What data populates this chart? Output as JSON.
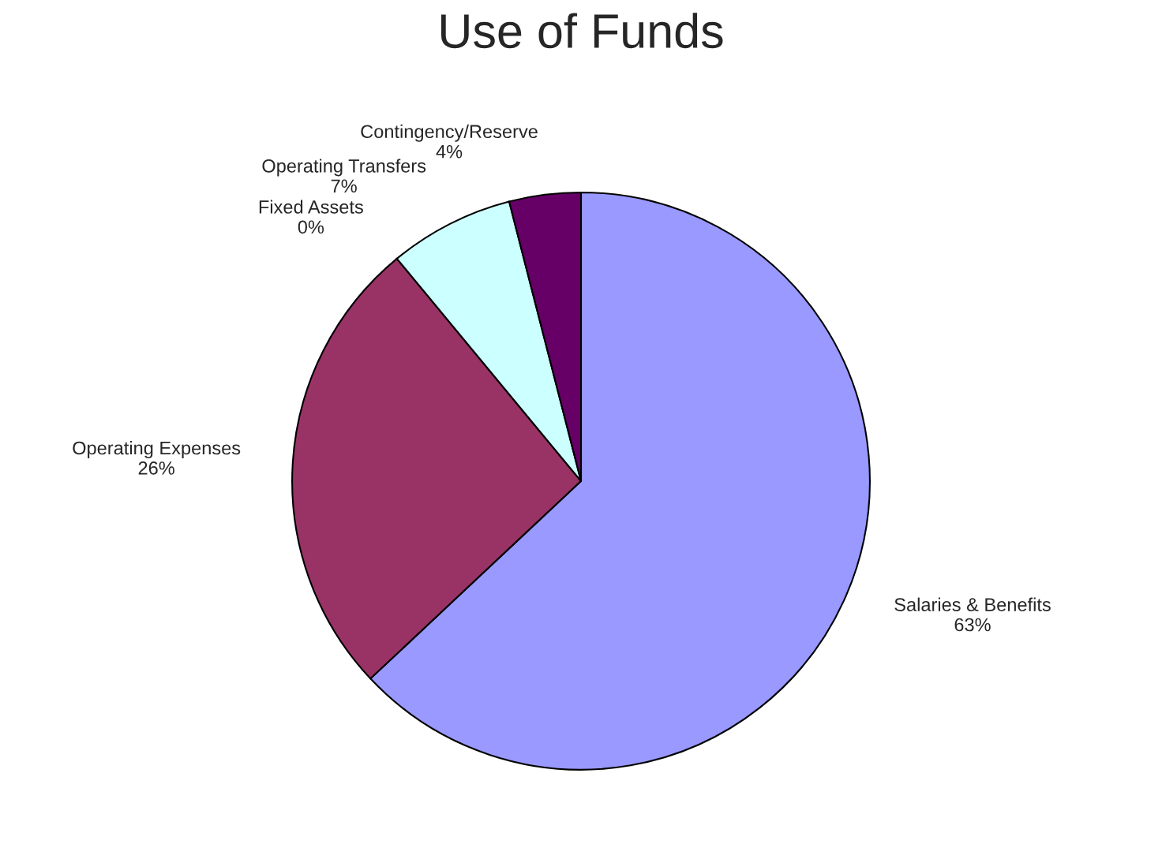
{
  "chart_data": {
    "type": "pie",
    "title": "Use of Funds",
    "categories": [
      "Salaries & Benefits",
      "Operating Expenses",
      "Fixed Assets",
      "Operating Transfers",
      "Contingency/Reserve"
    ],
    "values": [
      63,
      26,
      0,
      7,
      4
    ],
    "value_labels": [
      "63%",
      "26%",
      "0%",
      "7%",
      "4%"
    ],
    "colors": [
      "#9999ff",
      "#993366",
      "#ffffcc",
      "#ccffff",
      "#660066"
    ]
  }
}
